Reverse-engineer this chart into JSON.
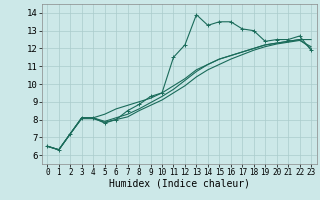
{
  "xlabel": "Humidex (Indice chaleur)",
  "xlim": [
    -0.5,
    23.5
  ],
  "ylim": [
    5.5,
    14.5
  ],
  "xticks": [
    0,
    1,
    2,
    3,
    4,
    5,
    6,
    7,
    8,
    9,
    10,
    11,
    12,
    13,
    14,
    15,
    16,
    17,
    18,
    19,
    20,
    21,
    22,
    23
  ],
  "yticks": [
    6,
    7,
    8,
    9,
    10,
    11,
    12,
    13,
    14
  ],
  "bg_color": "#cce8e8",
  "grid_color": "#aacccc",
  "line_color": "#1a6b5a",
  "line1_x": [
    0,
    1,
    2,
    3,
    4,
    5,
    6,
    7,
    8,
    9,
    10,
    11,
    12,
    13,
    14,
    15,
    16,
    17,
    18,
    19,
    20,
    21,
    22,
    23
  ],
  "line1_y": [
    6.5,
    6.3,
    7.2,
    8.1,
    8.1,
    7.8,
    8.0,
    8.5,
    8.85,
    9.3,
    9.5,
    11.5,
    12.2,
    13.9,
    13.3,
    13.5,
    13.5,
    13.1,
    13.0,
    12.4,
    12.5,
    12.5,
    12.7,
    11.9
  ],
  "line2_x": [
    0,
    1,
    2,
    3,
    4,
    5,
    6,
    7,
    8,
    9,
    10,
    11,
    12,
    13,
    14,
    15,
    16,
    17,
    18,
    19,
    20,
    21,
    22,
    23
  ],
  "line2_y": [
    6.5,
    6.3,
    7.2,
    8.1,
    8.1,
    8.3,
    8.6,
    8.8,
    9.0,
    9.2,
    9.5,
    9.9,
    10.3,
    10.8,
    11.1,
    11.4,
    11.6,
    11.8,
    12.0,
    12.2,
    12.3,
    12.4,
    12.5,
    12.5
  ],
  "line3_x": [
    0,
    1,
    2,
    3,
    4,
    5,
    6,
    7,
    8,
    9,
    10,
    11,
    12,
    13,
    14,
    15,
    16,
    17,
    18,
    19,
    20,
    21,
    22,
    23
  ],
  "line3_y": [
    6.5,
    6.3,
    7.2,
    8.1,
    8.1,
    7.9,
    8.1,
    8.3,
    8.6,
    8.95,
    9.3,
    9.7,
    10.2,
    10.7,
    11.1,
    11.4,
    11.6,
    11.8,
    12.0,
    12.2,
    12.3,
    12.4,
    12.5,
    12.0
  ],
  "line4_x": [
    0,
    1,
    2,
    3,
    4,
    5,
    6,
    7,
    8,
    9,
    10,
    11,
    12,
    13,
    14,
    15,
    16,
    17,
    18,
    19,
    20,
    21,
    22,
    23
  ],
  "line4_y": [
    6.5,
    6.3,
    7.2,
    8.05,
    8.05,
    7.85,
    8.0,
    8.15,
    8.5,
    8.8,
    9.1,
    9.5,
    9.9,
    10.4,
    10.8,
    11.1,
    11.4,
    11.65,
    11.9,
    12.1,
    12.25,
    12.35,
    12.45,
    12.1
  ]
}
